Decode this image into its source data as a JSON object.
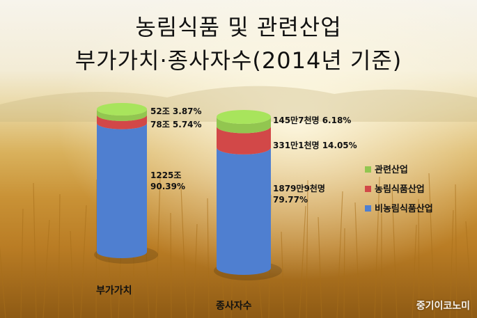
{
  "title_line1": "농림식품 및 관련산업",
  "title_line2": "부가가치·종사자수(2014년 기준)",
  "watermark": "중기이코노미",
  "chart_data": {
    "type": "bar",
    "stacked": true,
    "categories": [
      "부가가치",
      "종사자수"
    ],
    "series": [
      {
        "name": "비농림식품산업",
        "color": "#4f7fd0",
        "values": [
          90.39,
          79.77
        ],
        "labels": [
          "1225조\n90.39%",
          "1879만9천명\n79.77%"
        ]
      },
      {
        "name": "농림식품산업",
        "color": "#d24848",
        "values": [
          5.74,
          14.05
        ],
        "labels": [
          "78조 5.74%",
          "331만1천명 14.05%"
        ]
      },
      {
        "name": "관련산업",
        "color": "#92c650",
        "values": [
          3.87,
          6.18
        ],
        "labels": [
          "52조 3.87%",
          "145만7천명 6.18%"
        ]
      }
    ],
    "legend": {
      "position": "right",
      "order": [
        "관련산업",
        "농림식품산업",
        "비농림식품산업"
      ]
    },
    "grid": false
  }
}
